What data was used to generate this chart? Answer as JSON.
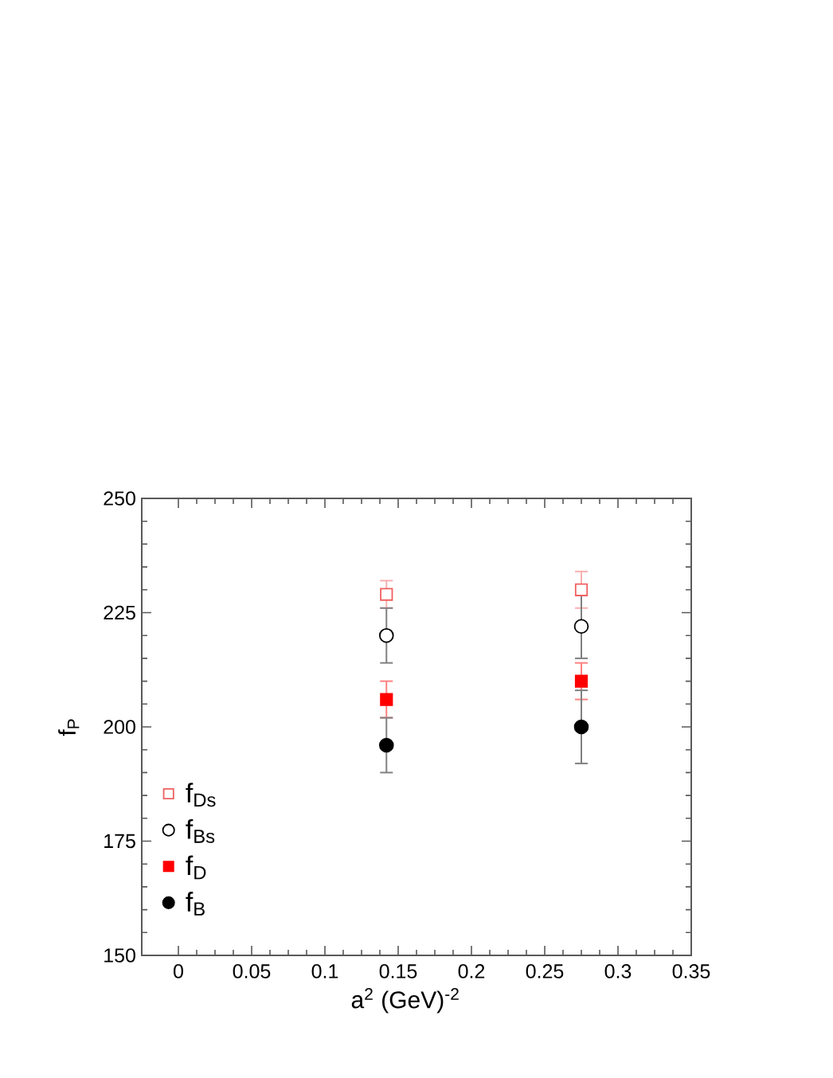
{
  "chart_data": {
    "type": "scatter",
    "xlabel": "a$^{2}$ (GeV)$^{-2}$",
    "ylabel": "f$_{P}$",
    "x": [
      0.142,
      0.275
    ],
    "xlim": [
      -0.025,
      0.35
    ],
    "xticks": [
      0,
      0.05,
      0.1,
      0.15,
      0.2,
      0.25,
      0.3,
      0.35
    ],
    "ylim": [
      150,
      250
    ],
    "yticks": [
      150,
      175,
      200,
      225,
      250
    ],
    "legend": "bottom left",
    "series": [
      {
        "name": "f$_{Ds}$",
        "color": "#f06060",
        "marker": "square",
        "values": [
          229,
          230
        ],
        "errors": [
          3,
          4
        ]
      },
      {
        "name": "f$_{Bs}$",
        "color": "#000000",
        "marker": "circle",
        "values": [
          220,
          222
        ],
        "errors": [
          6,
          7
        ]
      },
      {
        "name": "f$_{D}$",
        "color": "#ff0000",
        "marker": "square",
        "values": [
          206,
          210
        ],
        "errors": [
          4,
          4
        ]
      },
      {
        "name": "f$_{B}$",
        "color": "#000000",
        "marker": "circle",
        "values": [
          196,
          200
        ],
        "errors": [
          6,
          8
        ]
      }
    ]
  }
}
